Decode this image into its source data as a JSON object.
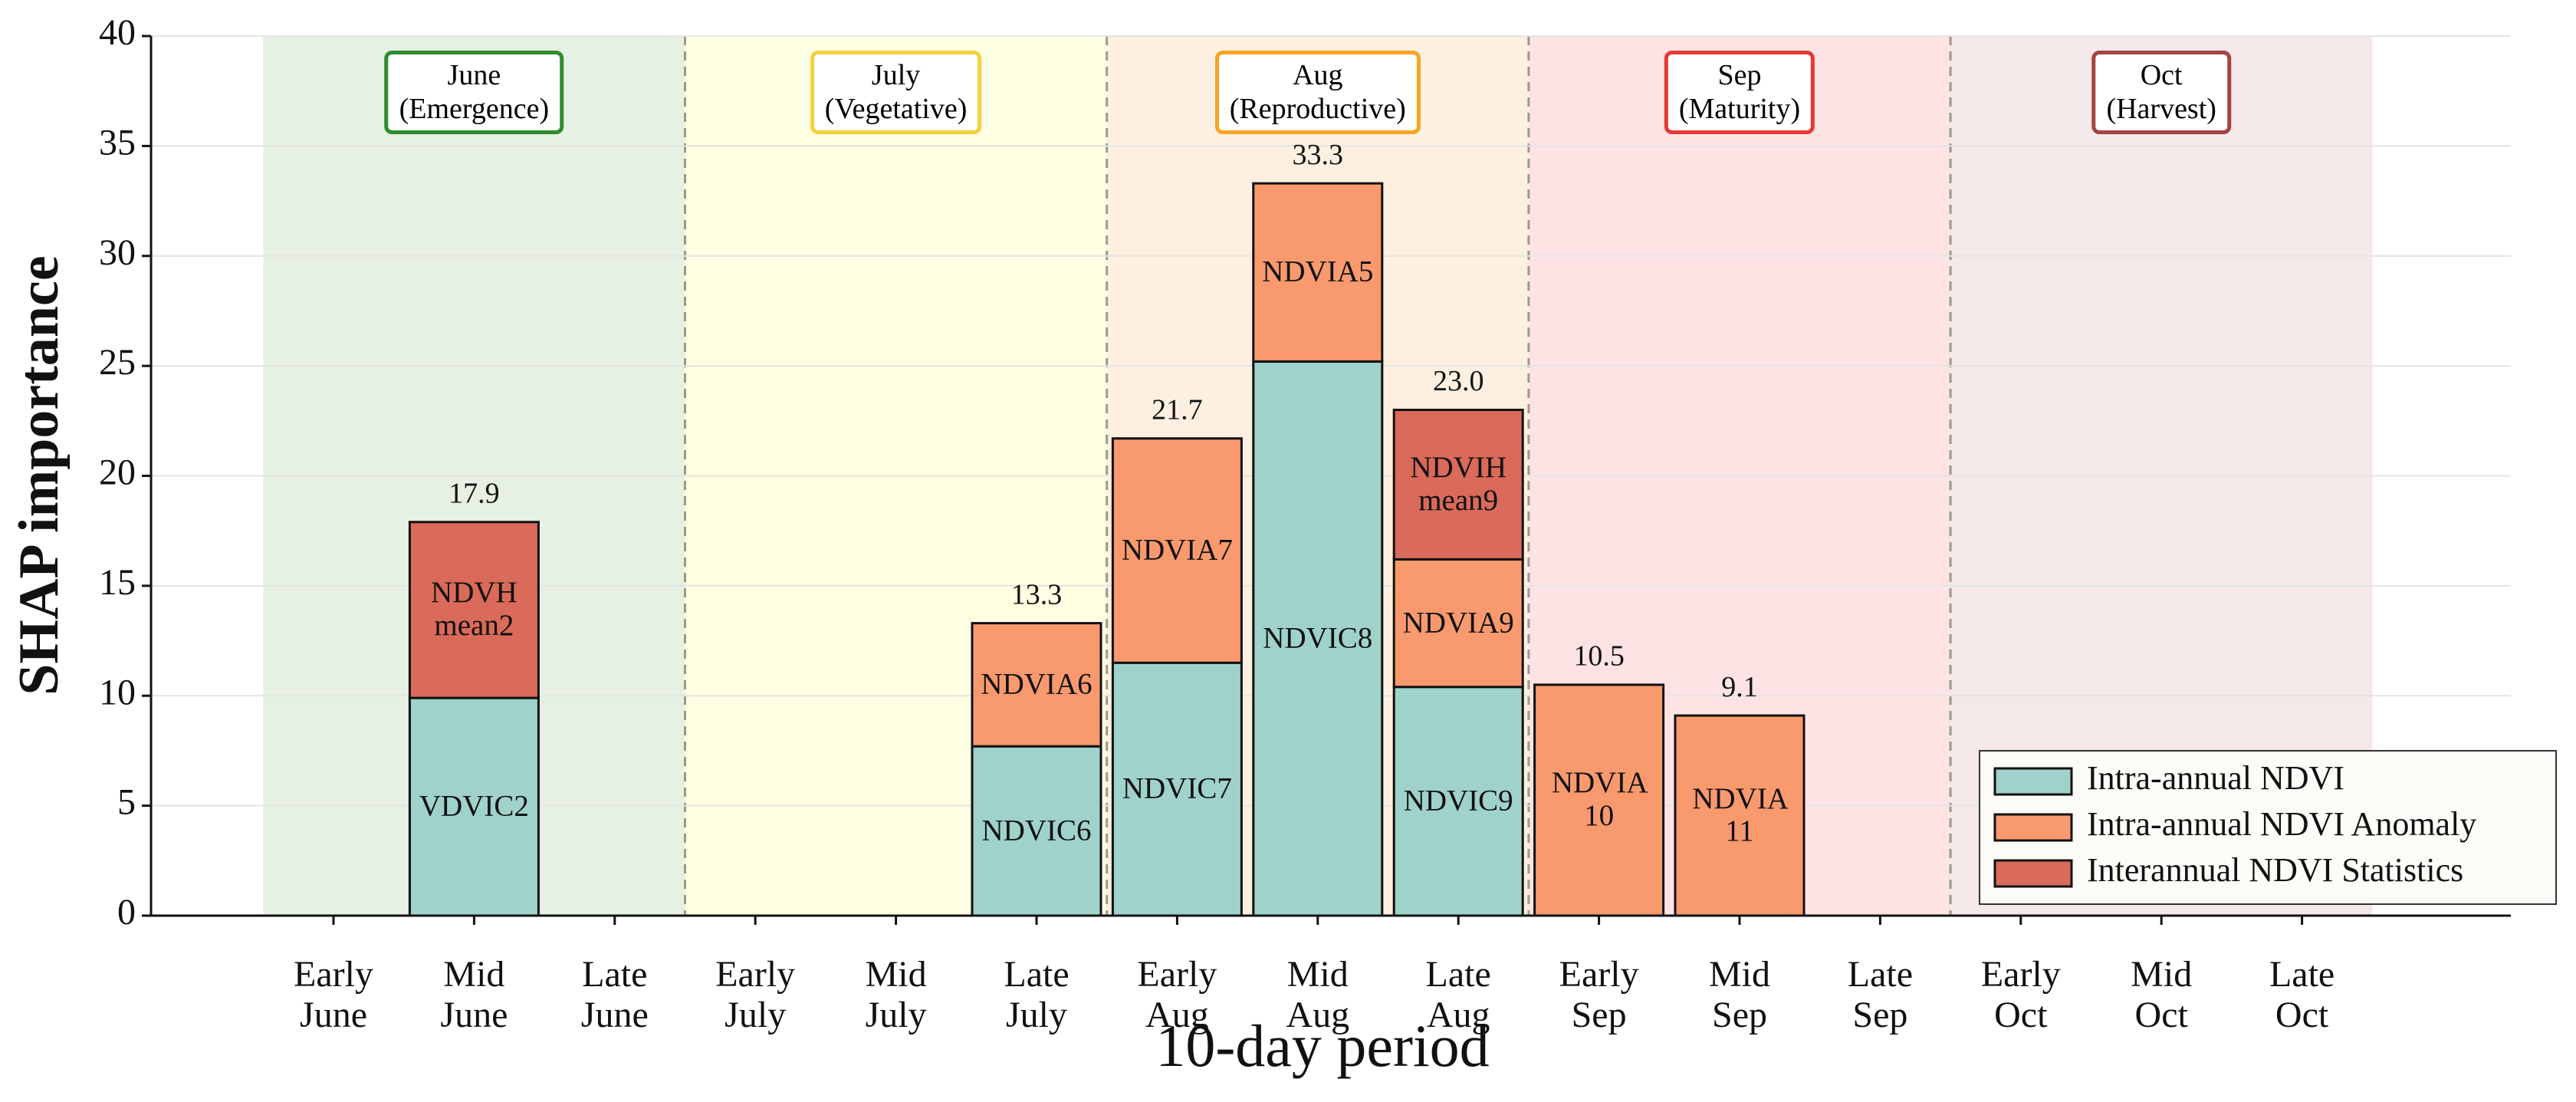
{
  "chart_data": {
    "type": "stacked-bar",
    "x_label": "10-day period",
    "y_label": "SHAP importance",
    "categories": [
      "Early June",
      "Mid June",
      "Late June",
      "Early July",
      "Mid July",
      "Late July",
      "Early Aug",
      "Mid Aug",
      "Late Aug",
      "Early Sep",
      "Mid Sep",
      "Late Sep",
      "Early Oct",
      "Mid Oct",
      "Late Oct"
    ],
    "series": [
      {
        "name": "Intra-annual NDVI",
        "color": "#9fd2cb",
        "values": [
          null,
          9.9,
          null,
          null,
          null,
          7.7,
          11.5,
          25.2,
          10.4,
          null,
          null,
          null,
          null,
          null,
          null
        ],
        "labels": [
          null,
          "VDVIC2",
          null,
          null,
          null,
          "NDVIC6",
          "NDVIC7",
          "NDVIC8",
          "NDVIC9",
          null,
          null,
          null,
          null,
          null,
          null
        ]
      },
      {
        "name": "Intra-annual NDVI Anomaly",
        "color": "#f9996e",
        "values": [
          null,
          null,
          null,
          null,
          null,
          5.6,
          10.2,
          8.1,
          5.8,
          10.5,
          9.1,
          null,
          null,
          null,
          null
        ],
        "labels": [
          null,
          null,
          null,
          null,
          null,
          "NDVIA6",
          "NDVIA7",
          "NDVIA5",
          "NDVIA9",
          "NDVIA 10",
          "NDVIA 11",
          null,
          null,
          null,
          null
        ]
      },
      {
        "name": "Interannual NDVI Statistics",
        "color": "#da6a59",
        "values": [
          null,
          8.0,
          null,
          null,
          null,
          null,
          null,
          null,
          6.8,
          null,
          null,
          null,
          null,
          null,
          null
        ],
        "labels": [
          null,
          "NDVH mean2",
          null,
          null,
          null,
          null,
          null,
          null,
          "NDVIH mean9",
          null,
          null,
          null,
          null,
          null,
          null
        ]
      }
    ],
    "totals": {
      "values": [
        null,
        17.9,
        null,
        null,
        null,
        13.3,
        21.7,
        33.3,
        23.0,
        10.5,
        9.1,
        null,
        null,
        null,
        null
      ],
      "value_labels": [
        null,
        "17.9",
        null,
        null,
        null,
        "13.3",
        "21.7",
        "33.3",
        "23.0",
        "10.5",
        "9.1",
        null,
        null,
        null,
        null
      ]
    },
    "phases": [
      {
        "name": "June",
        "stage": "(Emergence)",
        "color": "#e6f0e3",
        "edge": "#2e8b2e"
      },
      {
        "name": "July",
        "stage": "(Vegetative)",
        "color": "#fefee2",
        "edge": "#f3d23e"
      },
      {
        "name": "Aug",
        "stage": "(Reproductive)",
        "color": "#fdf0e0",
        "edge": "#f5a623"
      },
      {
        "name": "Sep",
        "stage": "(Maturity)",
        "color": "#fde3e4",
        "edge": "#e53935"
      },
      {
        "name": "Oct",
        "stage": "(Harvest)",
        "color": "#f4e8e8",
        "edge": "#a54444"
      }
    ],
    "ylim": [
      0,
      40
    ],
    "yticks": [
      0,
      5,
      10,
      15,
      20,
      25,
      30,
      35,
      40
    ],
    "grid": true,
    "legend": "lower right"
  }
}
